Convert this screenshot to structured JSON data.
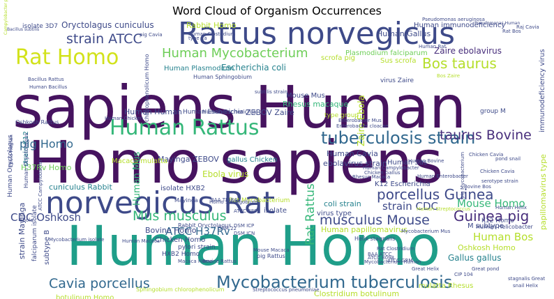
{
  "title": "Word Cloud of Organism Occurrences",
  "palette": {
    "dark_purple": "#46135f",
    "purple": "#472d7b",
    "indigo": "#3e4a89",
    "blue": "#31688e",
    "steel": "#26828e",
    "teal": "#1f9e89",
    "green": "#35b779",
    "light_green": "#6ece58",
    "yellow_green": "#b5de2b",
    "yellow": "#d2e21b"
  },
  "words": [
    {
      "text": "sapiens Human",
      "color": "dark_purple"
    },
    {
      "text": "Homo sapiens",
      "color": "dark_purple"
    },
    {
      "text": "Human Homo",
      "color": "teal"
    },
    {
      "text": "Rattus norvegicus",
      "color": "indigo"
    },
    {
      "text": "norvegicus Rat",
      "color": "indigo"
    },
    {
      "text": "Rat Homo",
      "color": "yellow"
    },
    {
      "text": "Human Rattus",
      "color": "green"
    },
    {
      "text": "tuberculosis strain",
      "color": "blue"
    },
    {
      "text": "Human Mycobacterium",
      "color": "light_green"
    },
    {
      "text": "Mycobacterium tuberculosis",
      "color": "blue"
    },
    {
      "text": "Cavia porcellus",
      "color": "blue"
    },
    {
      "text": "Mus musculus",
      "color": "green"
    },
    {
      "text": "musculus Mouse",
      "color": "indigo"
    },
    {
      "text": "Guinea pig",
      "color": "purple"
    },
    {
      "text": "porcellus Guinea",
      "color": "indigo"
    },
    {
      "text": "Bos taurus",
      "color": "yellow_green"
    },
    {
      "text": "taurus Bovine",
      "color": "purple"
    },
    {
      "text": "strain ATCC",
      "color": "indigo"
    },
    {
      "text": "pig Homo",
      "color": "blue"
    },
    {
      "text": "Human Bos",
      "color": "yellow_green"
    },
    {
      "text": "Mouse Homo",
      "color": "green"
    },
    {
      "text": "ATCC H37Rv",
      "color": "blue"
    },
    {
      "text": "CDC Oshkosh",
      "color": "indigo"
    },
    {
      "text": "strain CDC",
      "color": "indigo"
    },
    {
      "text": "Human Gallus",
      "color": "indigo"
    },
    {
      "text": "Human immunodeficiency",
      "color": "indigo"
    },
    {
      "text": "Zaire ebolavirus",
      "color": "purple"
    },
    {
      "text": "Escherichia coli",
      "color": "steel"
    },
    {
      "text": "Human Plasmodium",
      "color": "steel"
    },
    {
      "text": "Human Sphingobium",
      "color": "indigo"
    },
    {
      "text": "Oryctolagus cuniculus",
      "color": "indigo"
    },
    {
      "text": "Rabbit Homo",
      "color": "yellow_green"
    },
    {
      "text": "Plasmodium falciparum",
      "color": "light_green"
    },
    {
      "text": "Sus scrofa",
      "color": "yellow_green"
    },
    {
      "text": "virus Zaire",
      "color": "indigo"
    },
    {
      "text": "Mouse Mus",
      "color": "indigo"
    },
    {
      "text": "Rhesus macaque",
      "color": "green"
    },
    {
      "text": "Human Human",
      "color": "indigo"
    },
    {
      "text": "Human Escherichia",
      "color": "indigo"
    },
    {
      "text": "ZEBOV Zaire",
      "color": "indigo"
    },
    {
      "text": "Human Cavia",
      "color": "indigo"
    },
    {
      "text": "ebolavirus strain",
      "color": "indigo"
    },
    {
      "text": "Human Sus",
      "color": "indigo"
    },
    {
      "text": "H37Rv Homo",
      "color": "light_green"
    },
    {
      "text": "Mayinga ZEBOV",
      "color": "indigo"
    },
    {
      "text": "Macaca mulatta",
      "color": "yellow_green"
    },
    {
      "text": "gallus Chicken",
      "color": "steel"
    },
    {
      "text": "Ebola virus",
      "color": "yellow_green"
    },
    {
      "text": "type group",
      "color": "yellow_green"
    },
    {
      "text": "group M",
      "color": "indigo"
    },
    {
      "text": "isolate HXB2",
      "color": "indigo"
    },
    {
      "text": "cuniculus Rabbit",
      "color": "steel"
    },
    {
      "text": "K12 Escherichia",
      "color": "indigo"
    },
    {
      "text": "coli strain",
      "color": "steel"
    },
    {
      "text": "virus type",
      "color": "indigo"
    },
    {
      "text": "M subtype",
      "color": "indigo"
    },
    {
      "text": "Human papillomavirus",
      "color": "yellow_green"
    },
    {
      "text": "K12 Homo",
      "color": "indigo"
    },
    {
      "text": "Human Helicobacter",
      "color": "indigo"
    },
    {
      "text": "Gallus gallus",
      "color": "steel"
    },
    {
      "text": "Oshkosh Homo",
      "color": "yellow_green"
    },
    {
      "text": "Bovine Homo",
      "color": "indigo"
    },
    {
      "text": "Chicken Homo",
      "color": "indigo"
    },
    {
      "text": "pylori strain",
      "color": "indigo"
    },
    {
      "text": "HXB2 Homo",
      "color": "indigo"
    },
    {
      "text": "botulinum Homo",
      "color": "yellow_green"
    },
    {
      "text": "Clostridium botulinum",
      "color": "yellow_green"
    },
    {
      "text": "mulatta Rhesus",
      "color": "yellow_green"
    },
    {
      "text": "Oshkosh Rattus",
      "color": "indigo"
    },
    {
      "text": "isolate 3D7",
      "color": "indigo"
    },
    {
      "text": "Human Oryctolagus",
      "color": "indigo"
    },
    {
      "text": "strain K12",
      "color": "steel"
    },
    {
      "text": "strain Mayinga",
      "color": "indigo"
    },
    {
      "text": "falciparum isolate",
      "color": "indigo"
    },
    {
      "text": "subtype B",
      "color": "indigo"
    },
    {
      "text": "Zaire Ebola",
      "color": "yellow_green"
    },
    {
      "text": "immunodeficiency virus",
      "color": "indigo"
    },
    {
      "text": "papillomavirus type",
      "color": "yellow_green"
    },
    {
      "text": "Human Mus",
      "color": "green"
    },
    {
      "text": "Rat Mycobacterium",
      "color": "yellow_green"
    },
    {
      "text": "Rat Rattus",
      "color": "green"
    },
    {
      "text": "chlorophenolicum Homo",
      "color": "indigo"
    },
    {
      "text": "Human Escherichia",
      "color": "indigo"
    },
    {
      "text": "Mayinga",
      "color": "indigo"
    },
    {
      "text": "Human Oryctolagus",
      "color": "indigo"
    },
    {
      "text": "isolate",
      "color": "indigo"
    },
    {
      "text": "Rabbit Oryctolagus",
      "color": "indigo"
    },
    {
      "text": "Mouse Macaca",
      "color": "indigo"
    },
    {
      "text": "pig Rattus",
      "color": "indigo"
    },
    {
      "text": "Helix stagnalis",
      "color": "indigo"
    },
    {
      "text": "Human Streptococcus",
      "color": "yellow_green"
    },
    {
      "text": "Streptococcus pneumoniae",
      "color": "indigo"
    },
    {
      "text": "Sphingobium chlorophenolicum",
      "color": "yellow_green"
    },
    {
      "text": "stagnalis Great",
      "color": "indigo"
    },
    {
      "text": "snail Helix",
      "color": "indigo"
    },
    {
      "text": "Great pond",
      "color": "indigo"
    },
    {
      "text": "serotype strain",
      "color": "indigo"
    },
    {
      "text": "Enterobacter cloacae",
      "color": "indigo"
    },
    {
      "text": "scrofa pig",
      "color": "yellow_green"
    },
    {
      "text": "Campylobacter pylori",
      "color": "yellow_green"
    },
    {
      "text": "Bacillus subtilis",
      "color": "indigo"
    },
    {
      "text": "pig Cavia",
      "color": "indigo"
    },
    {
      "text": "type 1a",
      "color": "indigo"
    },
    {
      "text": "Human Clostridium",
      "color": "indigo"
    },
    {
      "text": "Rat Bos",
      "color": "indigo"
    },
    {
      "text": "Raj Cavia",
      "color": "indigo"
    },
    {
      "text": "Bos Zaire",
      "color": "yellow_green"
    },
    {
      "text": "ATCC 8800",
      "color": "indigo"
    },
    {
      "text": "Bovine Bos",
      "color": "indigo"
    },
    {
      "text": "pig Mycobacterium",
      "color": "indigo"
    },
    {
      "text": "Chicken Cavia",
      "color": "indigo"
    },
    {
      "text": "Human Bovine",
      "color": "indigo"
    },
    {
      "text": "Human Enterobacter",
      "color": "indigo"
    },
    {
      "text": "BAA TIGR4",
      "color": "indigo"
    },
    {
      "text": "DSM ICP",
      "color": "indigo"
    },
    {
      "text": "DSM ICN",
      "color": "indigo"
    },
    {
      "text": "ATCC Campylobacter",
      "color": "indigo"
    },
    {
      "text": "Mycobacterium isolate",
      "color": "indigo"
    },
    {
      "text": "Human Helix",
      "color": "indigo"
    },
    {
      "text": "Human Campylobacter",
      "color": "indigo"
    },
    {
      "text": "pond snail",
      "color": "indigo"
    },
    {
      "text": "subtilis strain",
      "color": "indigo"
    },
    {
      "text": "Rhesus Macaca",
      "color": "indigo"
    },
    {
      "text": "Chicken Gallus",
      "color": "indigo"
    },
    {
      "text": "Mycobacterium Human",
      "color": "indigo"
    },
    {
      "text": "Enterobacter Mus",
      "color": "indigo"
    },
    {
      "text": "Rat Clostridium",
      "color": "indigo"
    },
    {
      "text": "Great Helix",
      "color": "indigo"
    },
    {
      "text": "Homo Sphingobium",
      "color": "indigo"
    },
    {
      "text": "BAA ATCC",
      "color": "indigo"
    },
    {
      "text": "ATCC 8098",
      "color": "indigo"
    },
    {
      "text": "Human Chicken",
      "color": "indigo"
    },
    {
      "text": "Mycobacterium Mus",
      "color": "indigo"
    },
    {
      "text": "CIP 104",
      "color": "indigo"
    },
    {
      "text": "DSM 22",
      "color": "indigo"
    },
    {
      "text": "Ebola",
      "color": "indigo"
    },
    {
      "text": "Human Macaca",
      "color": "indigo"
    },
    {
      "text": "Bovine Rattus",
      "color": "indigo"
    },
    {
      "text": "Macaca Homo",
      "color": "indigo"
    },
    {
      "text": "ATCC GRM",
      "color": "indigo"
    },
    {
      "text": "Chicken Cavia",
      "color": "indigo"
    },
    {
      "text": "Pseudomonas Human",
      "color": "indigo"
    },
    {
      "text": "Human Rat",
      "color": "indigo"
    },
    {
      "text": "Pseudomonas aeruginosa",
      "color": "indigo"
    },
    {
      "text": "Bacillus Rattus",
      "color": "indigo"
    },
    {
      "text": "Human Bacillus",
      "color": "indigo"
    },
    {
      "text": "Ebola Human",
      "color": "indigo"
    }
  ]
}
